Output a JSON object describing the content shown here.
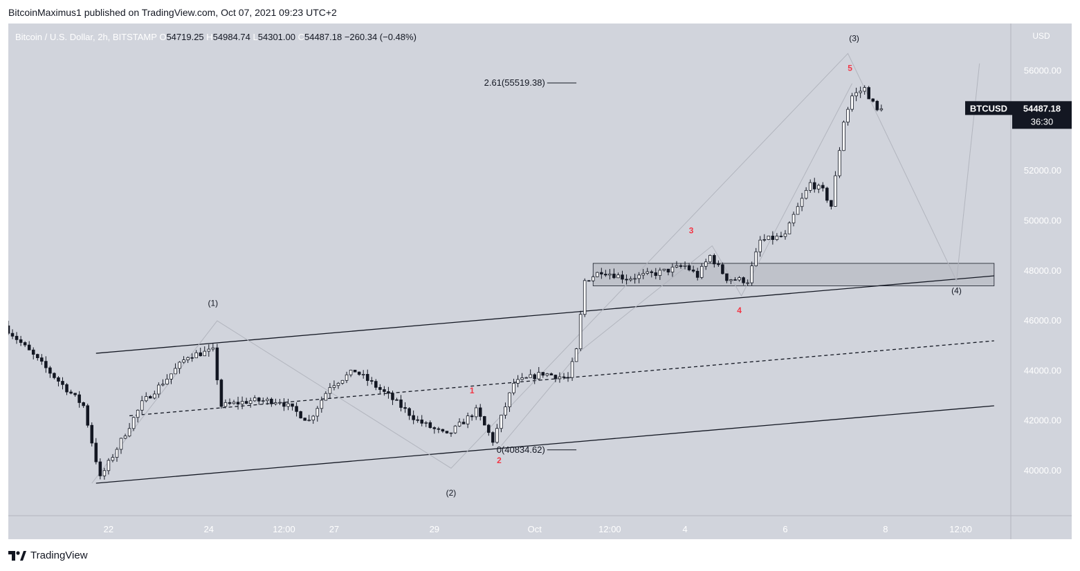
{
  "header": {
    "text": "BitcoinMaximus1 published on TradingView.com, Oct 07, 2021 09:23 UTC+2"
  },
  "footer": {
    "brand": "TradingView"
  },
  "colors": {
    "background": "#d1d4dc",
    "candle_up": "#ffffff",
    "candle_down": "#131722",
    "wick": "#131722",
    "channel": "#131722",
    "wave_path": "#b2b5be",
    "label_red": "#f23645",
    "zone_fill": "#bfc2ca"
  },
  "chart_data": {
    "type": "candlestick",
    "symbol_line": {
      "title": "Bitcoin / U.S. Dollar, 2h, BITSTAMP",
      "o_label": "O",
      "o_value": "54719.25",
      "h_label": "H",
      "h_value": "54984.74",
      "l_label": "L",
      "l_value": "54301.00",
      "c_label": "C",
      "c_value": "54487.18",
      "change": "−260.34 (−0.48%)"
    },
    "currency": "USD",
    "y_ticks": [
      "56000.00",
      "54000.00",
      "52000.00",
      "50000.00",
      "48000.00",
      "46000.00",
      "44000.00",
      "42000.00",
      "40000.00"
    ],
    "y_tick_values": [
      56000,
      54000,
      52000,
      50000,
      48000,
      46000,
      44000,
      42000,
      40000
    ],
    "ylim": [
      38200,
      57900
    ],
    "x_ticks": [
      "22",
      "24",
      "12:00",
      "27",
      "29",
      "Oct",
      "12:00",
      "4",
      "6",
      "8",
      "12:00"
    ],
    "x_tick_hours": [
      48,
      96,
      132,
      156,
      204,
      252,
      288,
      324,
      372,
      420,
      456
    ],
    "xlim_hours": [
      0,
      480
    ],
    "price_label": {
      "symbol": "BTCUSD",
      "price": "54487.18",
      "countdown": "36:30",
      "value": 54487.18
    },
    "fib_levels": [
      {
        "label": "2.61(55519.38)",
        "value": 55519.38
      },
      {
        "label": "0(40834.62)",
        "value": 40834.62
      }
    ],
    "key_points": [
      {
        "t": 0,
        "p": 45800
      },
      {
        "t": 20,
        "p": 44100
      },
      {
        "t": 38,
        "p": 42600
      },
      {
        "t": 46,
        "p": 39700
      },
      {
        "t": 66,
        "p": 42700
      },
      {
        "t": 78,
        "p": 43700
      },
      {
        "t": 88,
        "p": 44600
      },
      {
        "t": 100,
        "p": 44800
      },
      {
        "t": 104,
        "p": 42600
      },
      {
        "t": 118,
        "p": 42800
      },
      {
        "t": 132,
        "p": 42800
      },
      {
        "t": 146,
        "p": 42000
      },
      {
        "t": 156,
        "p": 43400
      },
      {
        "t": 168,
        "p": 44000
      },
      {
        "t": 184,
        "p": 43000
      },
      {
        "t": 198,
        "p": 42000
      },
      {
        "t": 212,
        "p": 41400
      },
      {
        "t": 226,
        "p": 42400
      },
      {
        "t": 234,
        "p": 41200
      },
      {
        "t": 244,
        "p": 43500
      },
      {
        "t": 258,
        "p": 43900
      },
      {
        "t": 270,
        "p": 43700
      },
      {
        "t": 274,
        "p": 44800
      },
      {
        "t": 278,
        "p": 47600
      },
      {
        "t": 286,
        "p": 48000
      },
      {
        "t": 298,
        "p": 47700
      },
      {
        "t": 312,
        "p": 47900
      },
      {
        "t": 326,
        "p": 48200
      },
      {
        "t": 332,
        "p": 47800
      },
      {
        "t": 338,
        "p": 48600
      },
      {
        "t": 346,
        "p": 47700
      },
      {
        "t": 356,
        "p": 47600
      },
      {
        "t": 362,
        "p": 49200
      },
      {
        "t": 374,
        "p": 49400
      },
      {
        "t": 378,
        "p": 50200
      },
      {
        "t": 386,
        "p": 51500
      },
      {
        "t": 392,
        "p": 51200
      },
      {
        "t": 396,
        "p": 50600
      },
      {
        "t": 402,
        "p": 54000
      },
      {
        "t": 406,
        "p": 55000
      },
      {
        "t": 412,
        "p": 55300
      },
      {
        "t": 418,
        "p": 54400
      }
    ],
    "channel_lines": [
      {
        "name": "channel-upper",
        "style": "solid",
        "points": [
          [
            42,
            44700
          ],
          [
            472,
            47800
          ]
        ]
      },
      {
        "name": "channel-middle",
        "style": "dashed",
        "points": [
          [
            58,
            42200
          ],
          [
            472,
            45200
          ]
        ]
      },
      {
        "name": "channel-lower",
        "style": "solid",
        "points": [
          [
            42,
            39500
          ],
          [
            472,
            42600
          ]
        ]
      }
    ],
    "wave_path": [
      [
        40,
        39500
      ],
      [
        100,
        46000
      ],
      [
        212,
        40100
      ],
      [
        402,
        56700
      ],
      [
        454,
        47600
      ],
      [
        465,
        56300
      ]
    ],
    "wave_path_inner": [
      [
        236,
        41000
      ],
      [
        274,
        44800
      ],
      [
        337,
        49000
      ],
      [
        351,
        47000
      ],
      [
        404,
        55500
      ]
    ],
    "consolidation_zone": {
      "t0": 280,
      "t1": 472,
      "p0": 47400,
      "p1": 48300
    },
    "wave_labels": [
      {
        "text": "(1)",
        "t": 98,
        "p": 46600,
        "color": "dark"
      },
      {
        "text": "(2)",
        "t": 212,
        "p": 39000,
        "color": "dark"
      },
      {
        "text": "(3)",
        "t": 405,
        "p": 57200,
        "color": "dark"
      },
      {
        "text": "(4)",
        "t": 454,
        "p": 47100,
        "color": "dark"
      },
      {
        "text": "1",
        "t": 222,
        "p": 43100,
        "color": "red"
      },
      {
        "text": "2",
        "t": 235,
        "p": 40300,
        "color": "red"
      },
      {
        "text": "3",
        "t": 327,
        "p": 49500,
        "color": "red"
      },
      {
        "text": "4",
        "t": 350,
        "p": 46300,
        "color": "red"
      },
      {
        "text": "5",
        "t": 403,
        "p": 56000,
        "color": "red"
      }
    ]
  }
}
